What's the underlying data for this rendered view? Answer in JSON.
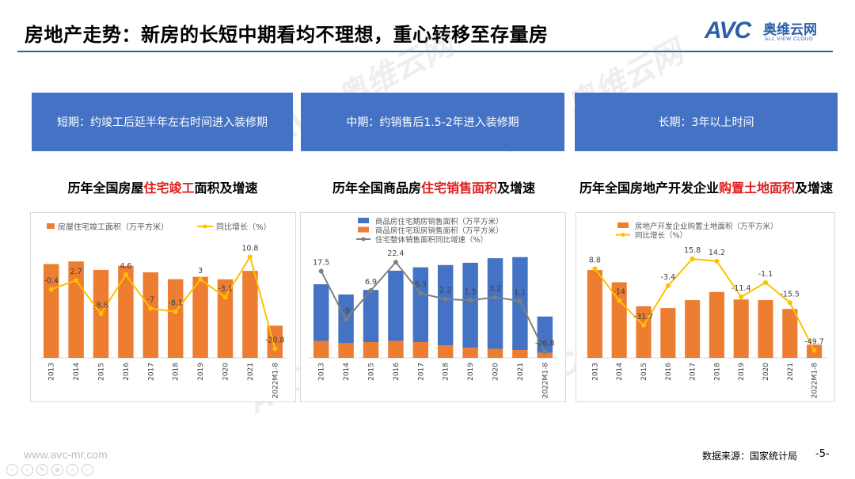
{
  "header": {
    "title": "房地产走势：新房的长短中期看均不理想，重心转移至存量房",
    "logo_letters": "AVC",
    "logo_cn": "奥维云网",
    "logo_en": "ALL VIEW CLOUD"
  },
  "boxes": [
    {
      "label": "短期：约竣工后延半年左右时间进入装修期"
    },
    {
      "label": "中期：约销售后1.5-2年进入装修期"
    },
    {
      "label": "长期：3年以上时间"
    }
  ],
  "titles": {
    "c1": {
      "pre": "历年全国房屋",
      "hl": "住宅竣工",
      "post": "面积及增速"
    },
    "c2": {
      "pre": "历年全国商品房",
      "hl": "住宅销售面积",
      "post": "及增速"
    },
    "c3": {
      "pre": "历年全国房地产开发企业",
      "hl": "购置土地面积",
      "post": "及增速"
    }
  },
  "footer": {
    "url": "www.avc-mr.com",
    "source": "数据来源：国家统计局",
    "page": "-5-"
  },
  "colors": {
    "orange": "#ed7d31",
    "blue": "#4472c4",
    "yellow": "#ffc000",
    "gray": "#7f7f7f",
    "accent": "#2b5fa8"
  },
  "chart_data": [
    {
      "type": "bar",
      "categories": [
        "2013",
        "2014",
        "2015",
        "2016",
        "2017",
        "2018",
        "2019",
        "2020",
        "2021",
        "2022M1-8"
      ],
      "series": [
        {
          "name": "房屋住宅竣工面积（万平方米）",
          "kind": "bar",
          "color": "#ed7d31",
          "values": [
            78700,
            80900,
            73800,
            77200,
            71800,
            66000,
            68000,
            65900,
            73000,
            27000
          ]
        },
        {
          "name": "同比增长（%）",
          "kind": "line",
          "color": "#ffc000",
          "values": [
            -0.4,
            2.7,
            -8.8,
            4.6,
            -7,
            -8.1,
            3,
            -3.1,
            10.8,
            -20.8
          ],
          "labels": [
            "-0.4",
            "2.7",
            "-8.8",
            "4.6",
            "-7",
            "-8.1",
            "3",
            "-3.1",
            "10.8",
            "-20.8"
          ]
        }
      ],
      "ylim": [
        0,
        95000
      ],
      "y2lim": [
        -24,
        15
      ]
    },
    {
      "type": "bar",
      "categories": [
        "2013",
        "2014",
        "2015",
        "2016",
        "2017",
        "2018",
        "2019",
        "2020",
        "2021",
        "2022M1-8"
      ],
      "series": [
        {
          "name": "商品房住宅期房销售面积（万平方米）",
          "kind": "stack",
          "color": "#4472c4",
          "values": [
            50000,
            43000,
            46000,
            62000,
            66000,
            71000,
            75000,
            80000,
            82000,
            32000
          ]
        },
        {
          "name": "商品房住宅现房销售面积（万平方米）",
          "kind": "stack",
          "color": "#ed7d31",
          "values": [
            15000,
            13000,
            14000,
            15000,
            14000,
            11000,
            9000,
            8000,
            7000,
            4500
          ]
        },
        {
          "name": "住宅整体销售面积同比增速（%）",
          "kind": "line",
          "color": "#7f7f7f",
          "values": [
            17.5,
            -9,
            6.9,
            22.4,
            5.3,
            2.2,
            1.5,
            3.2,
            1.1,
            -26.8
          ],
          "labels": [
            "17.5",
            "-9",
            "6.9",
            "22.4",
            "5.3",
            "2.2",
            "1.5",
            "3.2",
            "1.1",
            "-26.8"
          ]
        }
      ],
      "ylim": [
        0,
        100000
      ],
      "y2lim": [
        -30,
        32
      ]
    },
    {
      "type": "bar",
      "categories": [
        "2013",
        "2014",
        "2015",
        "2016",
        "2017",
        "2018",
        "2019",
        "2020",
        "2021",
        "2022M1-8"
      ],
      "series": [
        {
          "name": "房地产开发企业购置土地面积（万平方米）",
          "kind": "bar",
          "color": "#ed7d31",
          "values": [
            38800,
            33400,
            22800,
            22000,
            25500,
            29100,
            25800,
            25500,
            21600,
            5800
          ]
        },
        {
          "name": "同比增长（%）",
          "kind": "line",
          "color": "#ffc000",
          "values": [
            8.8,
            -14,
            -31.7,
            -3.4,
            15.8,
            14.2,
            -11.4,
            -1.1,
            -15.5,
            -49.7
          ],
          "labels": [
            "8.8",
            "-14",
            "-31.7",
            "-3.4",
            "15.8",
            "14.2",
            "-11.4",
            "-1.1",
            "-15.5",
            "-49.7"
          ]
        }
      ],
      "ylim": [
        0,
        50000
      ],
      "y2lim": [
        -55,
        26
      ]
    }
  ]
}
